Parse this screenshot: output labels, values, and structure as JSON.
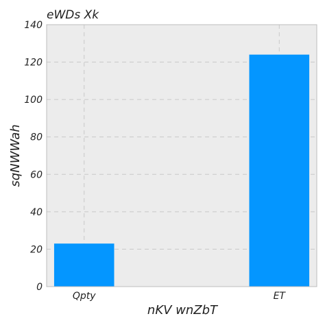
{
  "chart_data": {
    "type": "bar",
    "title": "eWDs Xk",
    "xlabel": "nKV wnZbT",
    "ylabel": "sqNWWah",
    "categories": [
      "Qpty",
      "ET"
    ],
    "values": [
      23,
      124
    ],
    "ylim": [
      0,
      140
    ],
    "yticks": [
      "0",
      "20",
      "40",
      "60",
      "80",
      "100",
      "120",
      "140"
    ],
    "grid": true,
    "bar_color": "#0496ff",
    "background_color": "#ececec"
  }
}
